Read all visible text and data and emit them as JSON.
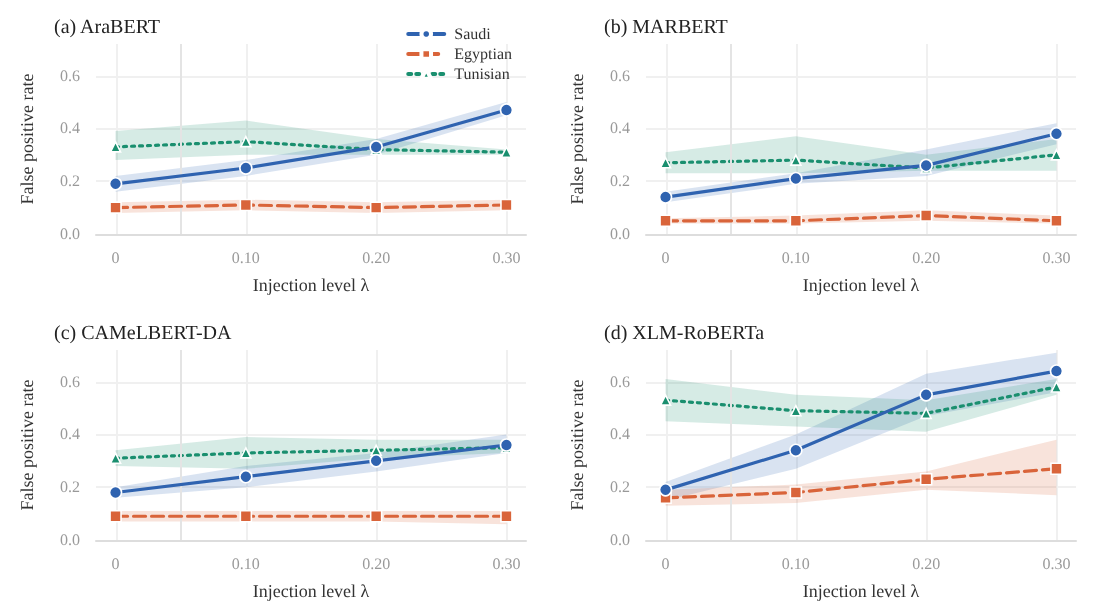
{
  "chart_data": [
    {
      "type": "line",
      "title": "(a) AraBERT",
      "xlabel": "Injection level λ",
      "ylabel": "False positive rate",
      "x": [
        0,
        0.1,
        0.2,
        0.3
      ],
      "xlim": [
        -0.015,
        0.315
      ],
      "xticks": [
        {
          "value": 0,
          "label": "0"
        },
        {
          "value": 0.1,
          "label": "0.10"
        },
        {
          "value": 0.2,
          "label": "0.20"
        },
        {
          "value": 0.3,
          "label": "0.30"
        }
      ],
      "ylim": [
        0,
        0.72
      ],
      "yticks": [
        {
          "value": 0,
          "label": "0.0"
        },
        {
          "value": 0.2,
          "label": "0.2"
        },
        {
          "value": 0.4,
          "label": "0.4"
        },
        {
          "value": 0.6,
          "label": "0.6"
        }
      ],
      "grid": true,
      "legend": "top right",
      "ref_lines": [
        {
          "axis": "x",
          "value": 0.05,
          "color": "#e4e4e4"
        }
      ],
      "series": [
        {
          "name": "Saudi",
          "color": "#2f63b0",
          "marker": "circle",
          "line_style": "solid",
          "values": [
            0.19,
            0.25,
            0.33,
            0.47
          ],
          "lower": [
            0.16,
            0.22,
            0.3,
            0.45
          ],
          "upper": [
            0.22,
            0.28,
            0.36,
            0.5
          ]
        },
        {
          "name": "Egyptian",
          "color": "#d9643a",
          "marker": "square",
          "line_style": "dashed",
          "values": [
            0.1,
            0.11,
            0.1,
            0.11
          ],
          "lower": [
            0.08,
            0.09,
            0.08,
            0.09
          ],
          "upper": [
            0.12,
            0.13,
            0.12,
            0.13
          ]
        },
        {
          "name": "Tunisian",
          "color": "#1a8f6f",
          "marker": "triangle",
          "line_style": "dotted",
          "values": [
            0.33,
            0.35,
            0.32,
            0.31
          ],
          "lower": [
            0.28,
            0.3,
            0.3,
            0.3
          ],
          "upper": [
            0.39,
            0.43,
            0.36,
            0.32
          ]
        }
      ]
    },
    {
      "type": "line",
      "title": "(b) MARBERT",
      "xlabel": "Injection level λ",
      "ylabel": "False positive rate",
      "x": [
        0,
        0.1,
        0.2,
        0.3
      ],
      "xlim": [
        -0.015,
        0.315
      ],
      "xticks": [
        {
          "value": 0,
          "label": "0"
        },
        {
          "value": 0.1,
          "label": "0.10"
        },
        {
          "value": 0.2,
          "label": "0.20"
        },
        {
          "value": 0.3,
          "label": "0.30"
        }
      ],
      "ylim": [
        0,
        0.72
      ],
      "yticks": [
        {
          "value": 0,
          "label": "0.0"
        },
        {
          "value": 0.2,
          "label": "0.2"
        },
        {
          "value": 0.4,
          "label": "0.4"
        },
        {
          "value": 0.6,
          "label": "0.6"
        }
      ],
      "grid": true,
      "ref_lines": [
        {
          "axis": "x",
          "value": 0.05,
          "color": "#e4e4e4"
        }
      ],
      "series": [
        {
          "color": "#2f63b0",
          "marker": "circle",
          "line_style": "solid",
          "values": [
            0.14,
            0.21,
            0.26,
            0.38
          ],
          "lower": [
            0.12,
            0.19,
            0.22,
            0.34
          ],
          "upper": [
            0.16,
            0.23,
            0.32,
            0.42
          ]
        },
        {
          "color": "#d9643a",
          "marker": "square",
          "line_style": "dashed",
          "values": [
            0.05,
            0.05,
            0.07,
            0.05
          ],
          "lower": [
            0.04,
            0.04,
            0.05,
            0.04
          ],
          "upper": [
            0.06,
            0.07,
            0.09,
            0.07
          ]
        },
        {
          "color": "#1a8f6f",
          "marker": "triangle",
          "line_style": "dotted",
          "values": [
            0.27,
            0.28,
            0.25,
            0.3
          ],
          "lower": [
            0.23,
            0.23,
            0.24,
            0.24
          ],
          "upper": [
            0.31,
            0.37,
            0.3,
            0.36
          ]
        }
      ]
    },
    {
      "type": "line",
      "title": "(c) CAMeLBERT-DA",
      "xlabel": "Injection level λ",
      "ylabel": "False positive rate",
      "x": [
        0,
        0.1,
        0.2,
        0.3
      ],
      "xlim": [
        -0.015,
        0.315
      ],
      "xticks": [
        {
          "value": 0,
          "label": "0"
        },
        {
          "value": 0.1,
          "label": "0.10"
        },
        {
          "value": 0.2,
          "label": "0.20"
        },
        {
          "value": 0.3,
          "label": "0.30"
        }
      ],
      "ylim": [
        0,
        0.72
      ],
      "yticks": [
        {
          "value": 0,
          "label": "0.0"
        },
        {
          "value": 0.2,
          "label": "0.2"
        },
        {
          "value": 0.4,
          "label": "0.4"
        },
        {
          "value": 0.6,
          "label": "0.6"
        }
      ],
      "grid": true,
      "ref_lines": [
        {
          "axis": "x",
          "value": 0.05,
          "color": "#e4e4e4"
        }
      ],
      "series": [
        {
          "color": "#2f63b0",
          "marker": "circle",
          "line_style": "solid",
          "values": [
            0.18,
            0.24,
            0.3,
            0.36
          ],
          "lower": [
            0.16,
            0.2,
            0.26,
            0.33
          ],
          "upper": [
            0.2,
            0.28,
            0.33,
            0.4
          ]
        },
        {
          "color": "#d9643a",
          "marker": "square",
          "line_style": "dashed",
          "values": [
            0.09,
            0.09,
            0.09,
            0.09
          ],
          "lower": [
            0.07,
            0.07,
            0.07,
            0.06
          ],
          "upper": [
            0.11,
            0.11,
            0.11,
            0.11
          ]
        },
        {
          "color": "#1a8f6f",
          "marker": "triangle",
          "line_style": "dotted",
          "values": [
            0.31,
            0.33,
            0.34,
            0.35
          ],
          "lower": [
            0.28,
            0.27,
            0.31,
            0.33
          ],
          "upper": [
            0.34,
            0.39,
            0.38,
            0.38
          ]
        }
      ]
    },
    {
      "type": "line",
      "title": "(d) XLM-RoBERTa",
      "xlabel": "Injection level λ",
      "ylabel": "False positive rate",
      "x": [
        0,
        0.1,
        0.2,
        0.3
      ],
      "xlim": [
        -0.015,
        0.315
      ],
      "xticks": [
        {
          "value": 0,
          "label": "0"
        },
        {
          "value": 0.1,
          "label": "0.10"
        },
        {
          "value": 0.2,
          "label": "0.20"
        },
        {
          "value": 0.3,
          "label": "0.30"
        }
      ],
      "ylim": [
        0,
        0.72
      ],
      "yticks": [
        {
          "value": 0,
          "label": "0.0"
        },
        {
          "value": 0.2,
          "label": "0.2"
        },
        {
          "value": 0.4,
          "label": "0.4"
        },
        {
          "value": 0.6,
          "label": "0.6"
        }
      ],
      "grid": true,
      "ref_lines": [
        {
          "axis": "x",
          "value": 0.05,
          "color": "#e4e4e4"
        }
      ],
      "series": [
        {
          "color": "#2f63b0",
          "marker": "circle",
          "line_style": "solid",
          "values": [
            0.19,
            0.34,
            0.55,
            0.64
          ],
          "lower": [
            0.15,
            0.27,
            0.47,
            0.56
          ],
          "upper": [
            0.22,
            0.4,
            0.63,
            0.71
          ]
        },
        {
          "color": "#d9643a",
          "marker": "square",
          "line_style": "dashed",
          "values": [
            0.16,
            0.18,
            0.23,
            0.27
          ],
          "lower": [
            0.13,
            0.14,
            0.19,
            0.17
          ],
          "upper": [
            0.19,
            0.21,
            0.26,
            0.38
          ]
        },
        {
          "color": "#1a8f6f",
          "marker": "triangle",
          "line_style": "dotted",
          "values": [
            0.53,
            0.49,
            0.48,
            0.58
          ],
          "lower": [
            0.45,
            0.43,
            0.41,
            0.55
          ],
          "upper": [
            0.61,
            0.55,
            0.53,
            0.61
          ]
        }
      ]
    }
  ]
}
